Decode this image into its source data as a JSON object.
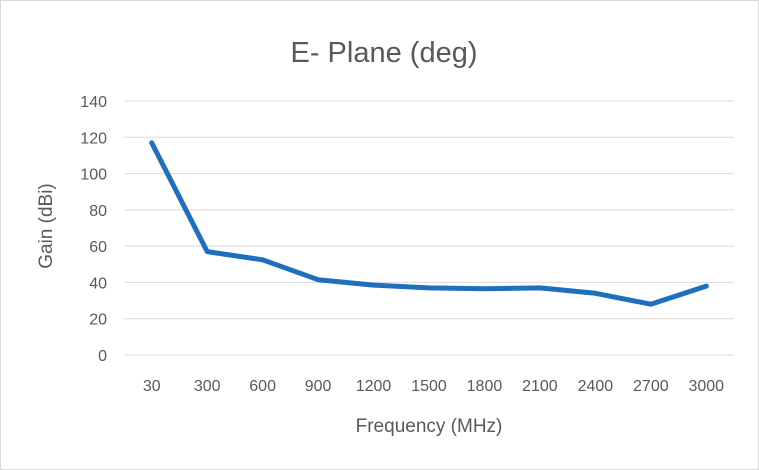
{
  "chart_data": {
    "type": "line",
    "title": "E- Plane (deg)",
    "xlabel": "Frequency (MHz)",
    "ylabel": "Gain (dBi)",
    "categories": [
      "30",
      "300",
      "600",
      "900",
      "1200",
      "1500",
      "1800",
      "2100",
      "2400",
      "2700",
      "3000"
    ],
    "series": [
      {
        "values": [
          117,
          57,
          52.5,
          41.5,
          38.5,
          37,
          36.5,
          37,
          34,
          28,
          38
        ]
      }
    ],
    "ylim": [
      0,
      140
    ],
    "yticks": [
      0,
      20,
      40,
      60,
      80,
      100,
      120,
      140
    ],
    "grid": true,
    "legend": "none",
    "colors": {
      "series": "#1f6fbf",
      "grid": "#d9d9d9",
      "text": "#595959"
    }
  }
}
